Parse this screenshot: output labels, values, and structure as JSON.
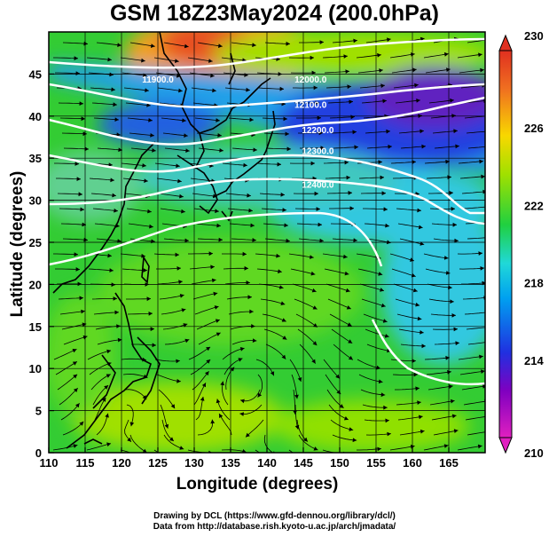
{
  "header": {
    "title": "GSM 18Z23May2024 (200.0hPa)"
  },
  "axes": {
    "xlabel": "Longitude (degrees)",
    "ylabel": "Latitude  (degrees)"
  },
  "credits": {
    "line1": "Drawing by DCL (https://www.gfd-dennou.org/library/dcl/)",
    "line2": "Data from http://database.rish.kyoto-u.ac.jp/arch/jmadata/"
  },
  "chart_data": {
    "type": "heatmap",
    "title": "GSM 18Z23May2024 (200.0hPa)",
    "xlabel": "Longitude (degrees)",
    "ylabel": "Latitude  (degrees)",
    "xlim": [
      110,
      170
    ],
    "ylim": [
      0,
      50
    ],
    "xticks": [
      110,
      115,
      120,
      125,
      130,
      135,
      140,
      145,
      150,
      155,
      160,
      165
    ],
    "yticks": [
      0,
      5,
      10,
      15,
      20,
      25,
      30,
      35,
      40,
      45
    ],
    "grid": true,
    "colorbar": {
      "min": 210,
      "max": 230,
      "ticks": [
        210,
        214,
        218,
        222,
        226,
        230
      ],
      "colors": [
        "#e020c0",
        "#8000c0",
        "#2030e0",
        "#00a0f0",
        "#20d8d8",
        "#20d040",
        "#a0e000",
        "#f8d800",
        "#f07020",
        "#e03020"
      ]
    },
    "contours": [
      {
        "value": "12000.0",
        "lon": 146,
        "lat": 44
      },
      {
        "value": "12100.0",
        "lon": 146,
        "lat": 41
      },
      {
        "value": "12200.0",
        "lon": 147,
        "lat": 38
      },
      {
        "value": "12300.0",
        "lon": 147,
        "lat": 35.5
      },
      {
        "value": "12400.0",
        "lon": 147,
        "lat": 31.5
      },
      {
        "value": "11900.0",
        "lon": 125,
        "lat": 44
      }
    ],
    "overlays": [
      "temperature-shading",
      "geopotential-height-contours",
      "wind-streamlines",
      "coastlines"
    ]
  }
}
